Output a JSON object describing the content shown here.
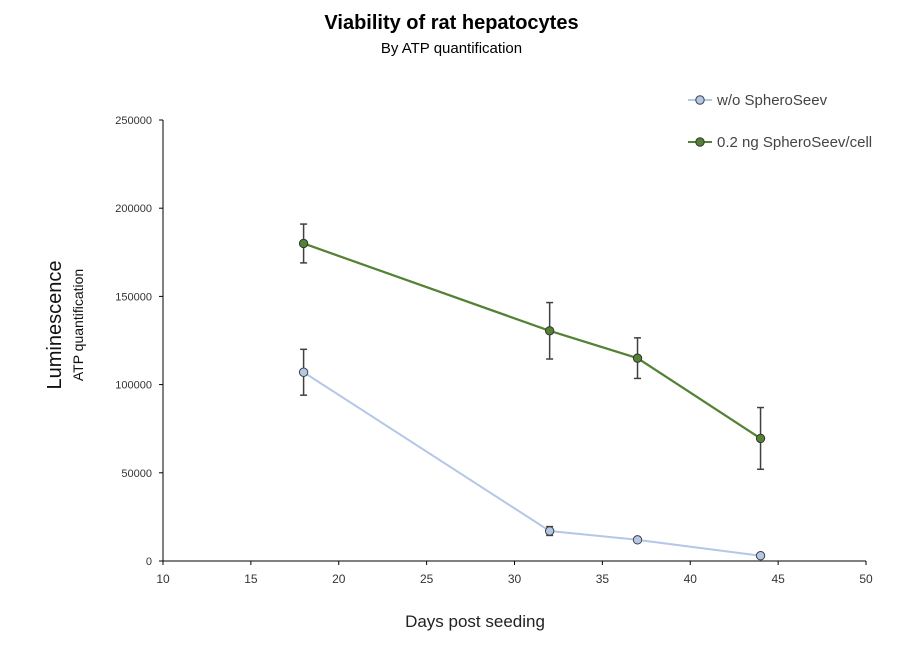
{
  "chart_data": {
    "type": "line",
    "title": "Viability of rat hepatocytes",
    "subtitle": "By ATP quantification",
    "xlabel": "Days post seeding",
    "ylabel": "Luminescence",
    "ylabel_sub": "ATP quantification",
    "xlim": [
      10,
      50
    ],
    "ylim": [
      0,
      250000
    ],
    "x_ticks": [
      10,
      15,
      20,
      25,
      30,
      35,
      40,
      45,
      50
    ],
    "y_ticks": [
      0,
      50000,
      100000,
      150000,
      200000,
      250000
    ],
    "grid": false,
    "legend_position": "top-right",
    "series": [
      {
        "name": "w/o SpheroSeev",
        "color": "#b4c7e7",
        "marker_fill": "#b4c7e7",
        "marker_edge": "#404040",
        "x": [
          18,
          32,
          37,
          44
        ],
        "y": [
          107000,
          17000,
          12000,
          3000
        ],
        "error": [
          13000,
          2500,
          1000,
          800
        ]
      },
      {
        "name": "0.2 ng SpheroSeev/cell",
        "color": "#548235",
        "marker_fill": "#548235",
        "marker_edge": "#333333",
        "x": [
          18,
          32,
          37,
          44
        ],
        "y": [
          180000,
          130500,
          115000,
          69500
        ],
        "error": [
          11000,
          16000,
          11500,
          17500
        ]
      }
    ]
  }
}
